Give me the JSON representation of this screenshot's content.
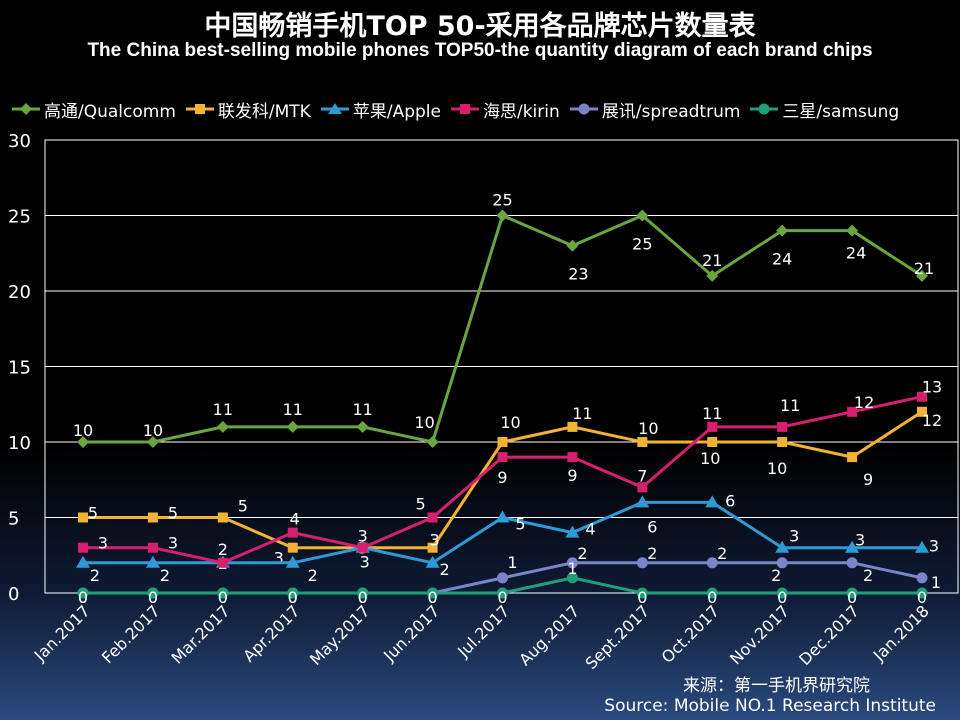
{
  "title": "中国畅销手机TOP 50-采用各品牌芯片数量表",
  "subtitle": "The China best-selling mobile phones TOP50-the quantity diagram of each brand chips",
  "source": {
    "cn": "来源：第一手机界研究院",
    "en": "Source: Mobile NO.1 Research Institute"
  },
  "chart_data": {
    "type": "line",
    "title": "中国畅销手机TOP 50-采用各品牌芯片数量表",
    "xlabel": "",
    "ylabel": "",
    "ylim": [
      0,
      30
    ],
    "yticks": [
      0,
      5,
      10,
      15,
      20,
      25,
      30
    ],
    "grid": true,
    "legend_position": "top",
    "categories": [
      "Jan.2017",
      "Feb.2017",
      "Mar.2017",
      "Apr.2017",
      "May.2017",
      "Jun.2017",
      "Jul.2017",
      "Aug.2017",
      "Sept.2017",
      "Oct.2017",
      "Nov.2017",
      "Dec.2017",
      "Jan.2018"
    ],
    "series": [
      {
        "name": "高通/Qualcomm",
        "color": "#6aa640",
        "marker": "diamond",
        "values": [
          10,
          10,
          11,
          11,
          11,
          10,
          25,
          23,
          25,
          21,
          24,
          24,
          21
        ]
      },
      {
        "name": "联发科/MTK",
        "color": "#f2b233",
        "marker": "square",
        "values": [
          5,
          5,
          5,
          3,
          3,
          3,
          10,
          11,
          10,
          10,
          10,
          9,
          12
        ]
      },
      {
        "name": "苹果/Apple",
        "color": "#2e9bd6",
        "marker": "triangle",
        "values": [
          2,
          2,
          2,
          2,
          3,
          2,
          5,
          4,
          6,
          6,
          3,
          3,
          3
        ]
      },
      {
        "name": "海思/kirin",
        "color": "#d61f6e",
        "marker": "square",
        "values": [
          3,
          3,
          2,
          4,
          3,
          5,
          9,
          9,
          7,
          11,
          11,
          12,
          13
        ]
      },
      {
        "name": "展讯/spreadtrum",
        "color": "#7a84c8",
        "marker": "circle",
        "values": [
          0,
          0,
          0,
          0,
          0,
          0,
          1,
          2,
          2,
          2,
          2,
          2,
          1
        ]
      },
      {
        "name": "三星/samsung",
        "color": "#1f9e7a",
        "marker": "circle",
        "values": [
          0,
          0,
          0,
          0,
          0,
          0,
          0,
          1,
          0,
          0,
          0,
          0,
          0
        ]
      }
    ]
  }
}
